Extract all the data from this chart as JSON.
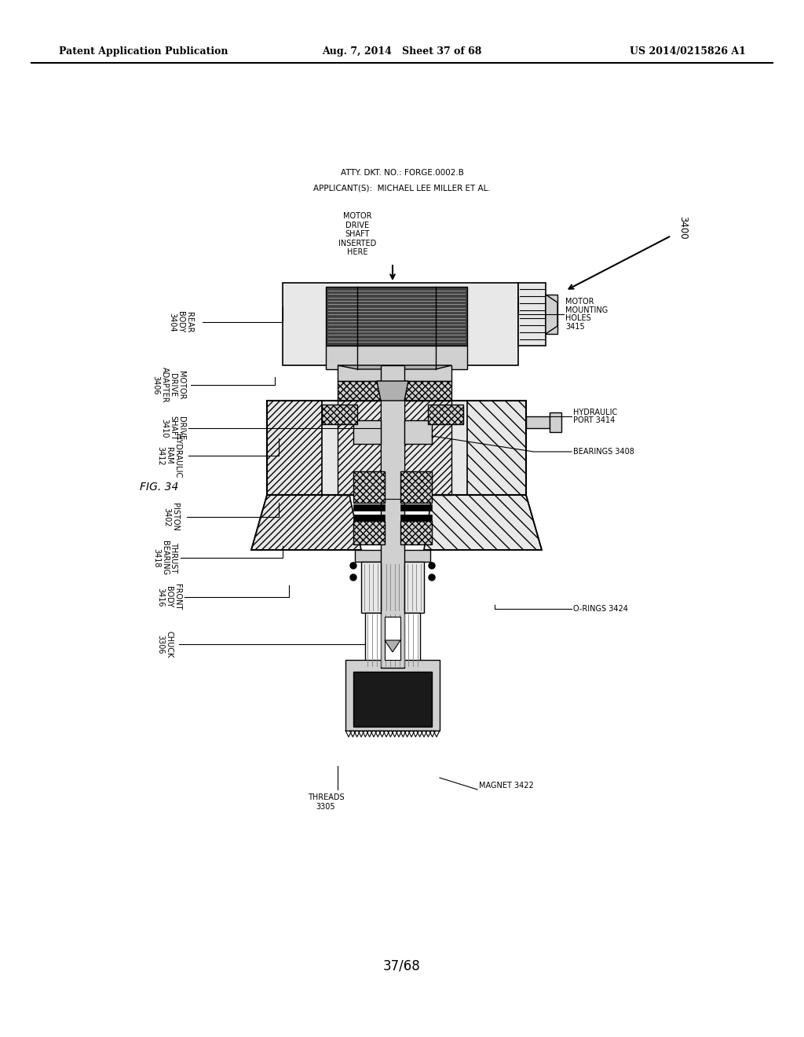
{
  "page_header_left": "Patent Application Publication",
  "page_header_center": "Aug. 7, 2014   Sheet 37 of 68",
  "page_header_right": "US 2014/0215826 A1",
  "atty_line1": "ATTY. DKT. NO.: FORGE.0002.B",
  "atty_line2": "APPLICANT(S):  MICHAEL LEE MILLER ET AL.",
  "fig_label": "FIG. 34",
  "page_number": "37/68",
  "main_ref": "3400",
  "bg_color": "#ffffff",
  "line_color": "#000000"
}
